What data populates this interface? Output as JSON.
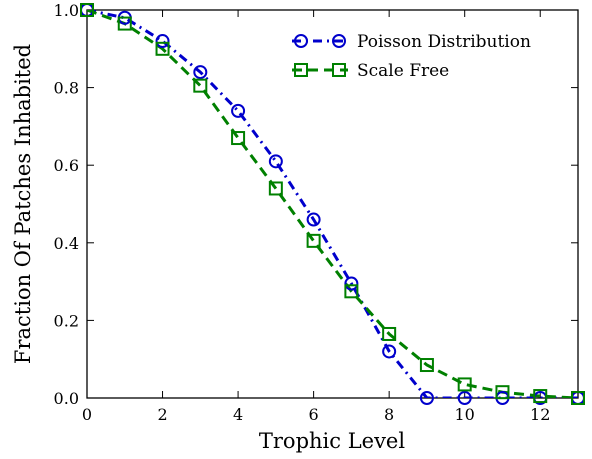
{
  "chart_data": {
    "type": "line",
    "xlabel": "Trophic Level",
    "ylabel": "Fraction Of Patches Inhabited",
    "xlim": [
      0,
      13
    ],
    "ylim": [
      0,
      1.0
    ],
    "xticks": [
      0,
      2,
      4,
      6,
      8,
      10,
      12
    ],
    "xtick_labels": [
      "0",
      "2",
      "4",
      "6",
      "8",
      "10",
      "12"
    ],
    "yticks": [
      0.0,
      0.2,
      0.4,
      0.6,
      0.8,
      1.0
    ],
    "ytick_labels": [
      "0.0",
      "0.2",
      "0.4",
      "0.6",
      "0.8",
      "1.0"
    ],
    "grid": false,
    "legend_position": "top-right",
    "series": [
      {
        "name": "Poisson Distribution",
        "color": "#0000cc",
        "marker": "circle",
        "line_style": "dash-dot",
        "x": [
          0,
          1,
          2,
          3,
          4,
          5,
          6,
          7,
          8,
          9,
          10,
          11,
          12,
          13
        ],
        "y": [
          1.0,
          0.98,
          0.92,
          0.84,
          0.74,
          0.61,
          0.46,
          0.295,
          0.12,
          0.0,
          0.0,
          0.0,
          0.0,
          0.0
        ]
      },
      {
        "name": "Scale Free",
        "color": "#008000",
        "marker": "square",
        "line_style": "dashed",
        "x": [
          0,
          1,
          2,
          3,
          4,
          5,
          6,
          7,
          8,
          9,
          10,
          11,
          12,
          13
        ],
        "y": [
          1.0,
          0.965,
          0.9,
          0.805,
          0.67,
          0.54,
          0.405,
          0.275,
          0.165,
          0.085,
          0.035,
          0.015,
          0.005,
          0.0
        ]
      }
    ]
  }
}
